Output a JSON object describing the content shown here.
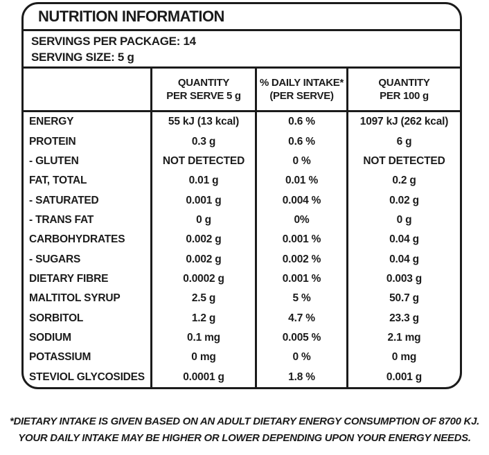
{
  "label": {
    "title": "NUTRITION INFORMATION",
    "servings_per_package": "SERVINGS PER PACKAGE: 14",
    "serving_size": "SERVING SIZE: 5 g",
    "columns": [
      {
        "line1": "",
        "line2": ""
      },
      {
        "line1": "QUANTITY",
        "line2": "PER SERVE 5 g"
      },
      {
        "line1": "% DAILY INTAKE*",
        "line2": "(PER SERVE)"
      },
      {
        "line1": "QUANTITY",
        "line2": "PER 100 g"
      }
    ],
    "rows": [
      {
        "name": "ENERGY",
        "per_serve": "55 kJ (13 kcal)",
        "daily_intake": "0.6 %",
        "per_100g": "1097 kJ (262 kcal)"
      },
      {
        "name": "PROTEIN",
        "per_serve": "0.3 g",
        "daily_intake": "0.6 %",
        "per_100g": "6 g"
      },
      {
        "name": "- GLUTEN",
        "per_serve": "NOT DETECTED",
        "daily_intake": "0 %",
        "per_100g": "NOT DETECTED"
      },
      {
        "name": "FAT, TOTAL",
        "per_serve": "0.01 g",
        "daily_intake": "0.01 %",
        "per_100g": "0.2 g"
      },
      {
        "name": "- SATURATED",
        "per_serve": "0.001 g",
        "daily_intake": "0.004 %",
        "per_100g": "0.02 g"
      },
      {
        "name": "- TRANS FAT",
        "per_serve": "0 g",
        "daily_intake": "0%",
        "per_100g": "0 g"
      },
      {
        "name": "CARBOHYDRATES",
        "per_serve": "0.002 g",
        "daily_intake": "0.001 %",
        "per_100g": "0.04 g"
      },
      {
        "name": "- SUGARS",
        "per_serve": "0.002 g",
        "daily_intake": "0.002 %",
        "per_100g": "0.04 g"
      },
      {
        "name": "DIETARY FIBRE",
        "per_serve": "0.0002 g",
        "daily_intake": "0.001 %",
        "per_100g": "0.003 g"
      },
      {
        "name": "MALTITOL SYRUP",
        "per_serve": "2.5 g",
        "daily_intake": "5 %",
        "per_100g": "50.7 g"
      },
      {
        "name": "SORBITOL",
        "per_serve": "1.2 g",
        "daily_intake": "4.7 %",
        "per_100g": "23.3 g"
      },
      {
        "name": "SODIUM",
        "per_serve": "0.1 mg",
        "daily_intake": "0.005 %",
        "per_100g": "2.1 mg"
      },
      {
        "name": "POTASSIUM",
        "per_serve": "0 mg",
        "daily_intake": "0 %",
        "per_100g": "0 mg"
      },
      {
        "name": "STEVIOL GLYCOSIDES",
        "per_serve": "0.0001 g",
        "daily_intake": "1.8 %",
        "per_100g": "0.001 g"
      }
    ],
    "footnote_line1": "*DIETARY INTAKE IS GIVEN BASED ON AN ADULT DIETARY ENERGY CONSUMPTION OF 8700 KJ.",
    "footnote_line2": "YOUR DAILY INTAKE MAY BE HIGHER OR LOWER DEPENDING UPON YOUR ENERGY NEEDS.",
    "colors": {
      "ink": "#1b1b1b",
      "background": "#ffffff"
    }
  }
}
